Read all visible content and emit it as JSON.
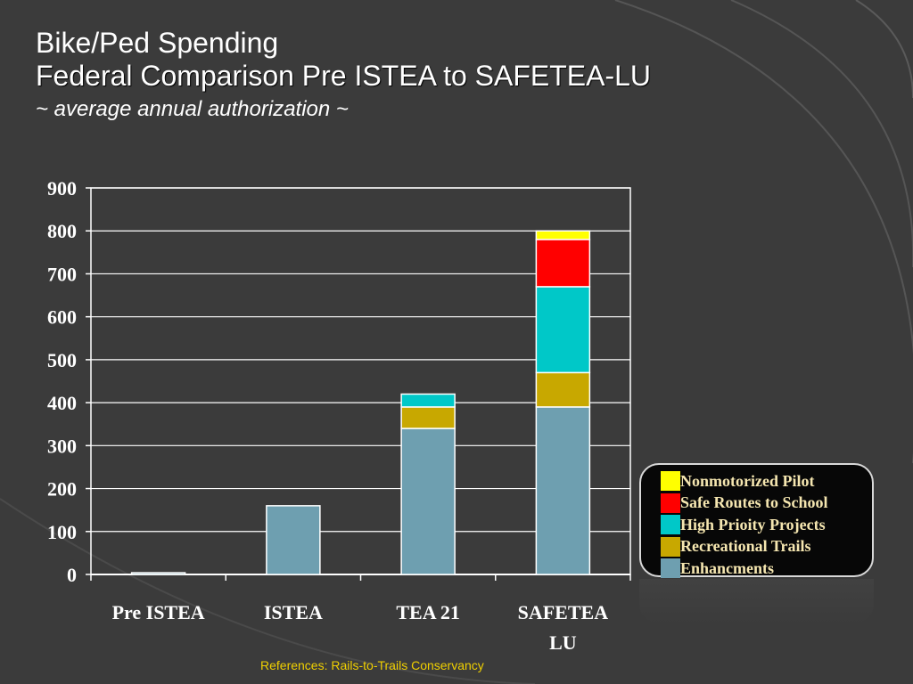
{
  "title": {
    "line1": "Bike/Ped Spending",
    "line2": "Federal Comparison Pre ISTEA to SAFETEA-LU",
    "line3": "~ average annual authorization ~"
  },
  "footer": "References: Rails-to-Trails Conservancy",
  "chart_data": {
    "type": "bar",
    "stacked": true,
    "categories": [
      "Pre ISTEA",
      "ISTEA",
      "TEA 21",
      "SAFETEA LU"
    ],
    "ylim": [
      0,
      900
    ],
    "yticks": [
      0,
      100,
      200,
      300,
      400,
      500,
      600,
      700,
      800,
      900
    ],
    "grid": true,
    "legend_position": "right",
    "series": [
      {
        "name": "Enhancments",
        "color": "#6e9fb0",
        "values": [
          4,
          160,
          340,
          390
        ]
      },
      {
        "name": "Recreational Trails",
        "color": "#c8a800",
        "values": [
          0,
          0,
          50,
          80
        ]
      },
      {
        "name": "High Prioity Projects",
        "color": "#00c8c8",
        "values": [
          0,
          0,
          30,
          200
        ]
      },
      {
        "name": "Safe Routes to School",
        "color": "#ff0000",
        "values": [
          0,
          0,
          0,
          110
        ]
      },
      {
        "name": "Nonmotorized Pilot",
        "color": "#ffff00",
        "values": [
          0,
          0,
          0,
          20
        ]
      }
    ]
  }
}
